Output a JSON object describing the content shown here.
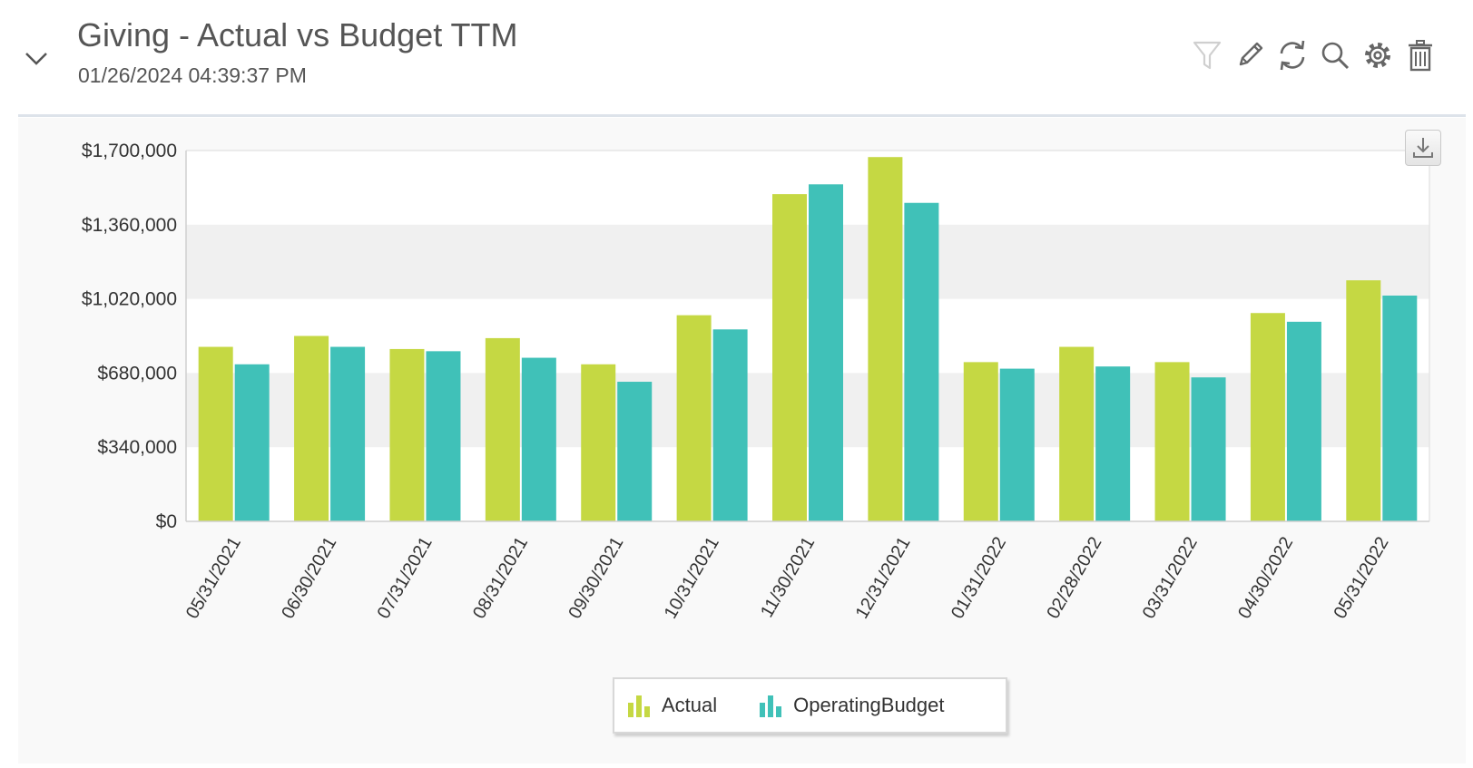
{
  "header": {
    "title": "Giving - Actual vs Budget TTM",
    "timestamp": "01/26/2024 04:39:37 PM"
  },
  "toolbar": {
    "icons": [
      "filter-icon",
      "edit-pencil-icon",
      "refresh-icon",
      "search-icon",
      "settings-gear-icon",
      "delete-trash-icon"
    ]
  },
  "colors": {
    "actual": "#c5d843",
    "budget": "#40c1b8",
    "band": "#f0f0f0",
    "axis_text": "#333333"
  },
  "chart_data": {
    "type": "bar",
    "title": "",
    "xlabel": "",
    "ylabel": "",
    "categories": [
      "05/31/2021",
      "06/30/2021",
      "07/31/2021",
      "08/31/2021",
      "09/30/2021",
      "10/31/2021",
      "11/30/2021",
      "12/31/2021",
      "01/31/2022",
      "02/28/2022",
      "03/31/2022",
      "04/30/2022",
      "05/31/2022"
    ],
    "series": [
      {
        "name": "Actual",
        "color": "#c5d843",
        "values": [
          800000,
          850000,
          790000,
          840000,
          720000,
          945000,
          1500000,
          1670000,
          730000,
          800000,
          730000,
          955000,
          1105000
        ]
      },
      {
        "name": "OperatingBudget",
        "color": "#40c1b8",
        "values": [
          720000,
          800000,
          780000,
          750000,
          640000,
          880000,
          1545000,
          1460000,
          700000,
          710000,
          660000,
          915000,
          1035000
        ]
      }
    ],
    "ylim": [
      0,
      1700000
    ],
    "yticks": [
      0,
      340000,
      680000,
      1020000,
      1360000,
      1700000
    ],
    "ytick_labels": [
      "$0",
      "$340,000",
      "$680,000",
      "$1,020,000",
      "$1,360,000",
      "$1,700,000"
    ],
    "legend": {
      "position": "bottom-center",
      "entries": [
        "Actual",
        "OperatingBudget"
      ]
    },
    "grid": false,
    "alternating_bands": true
  }
}
